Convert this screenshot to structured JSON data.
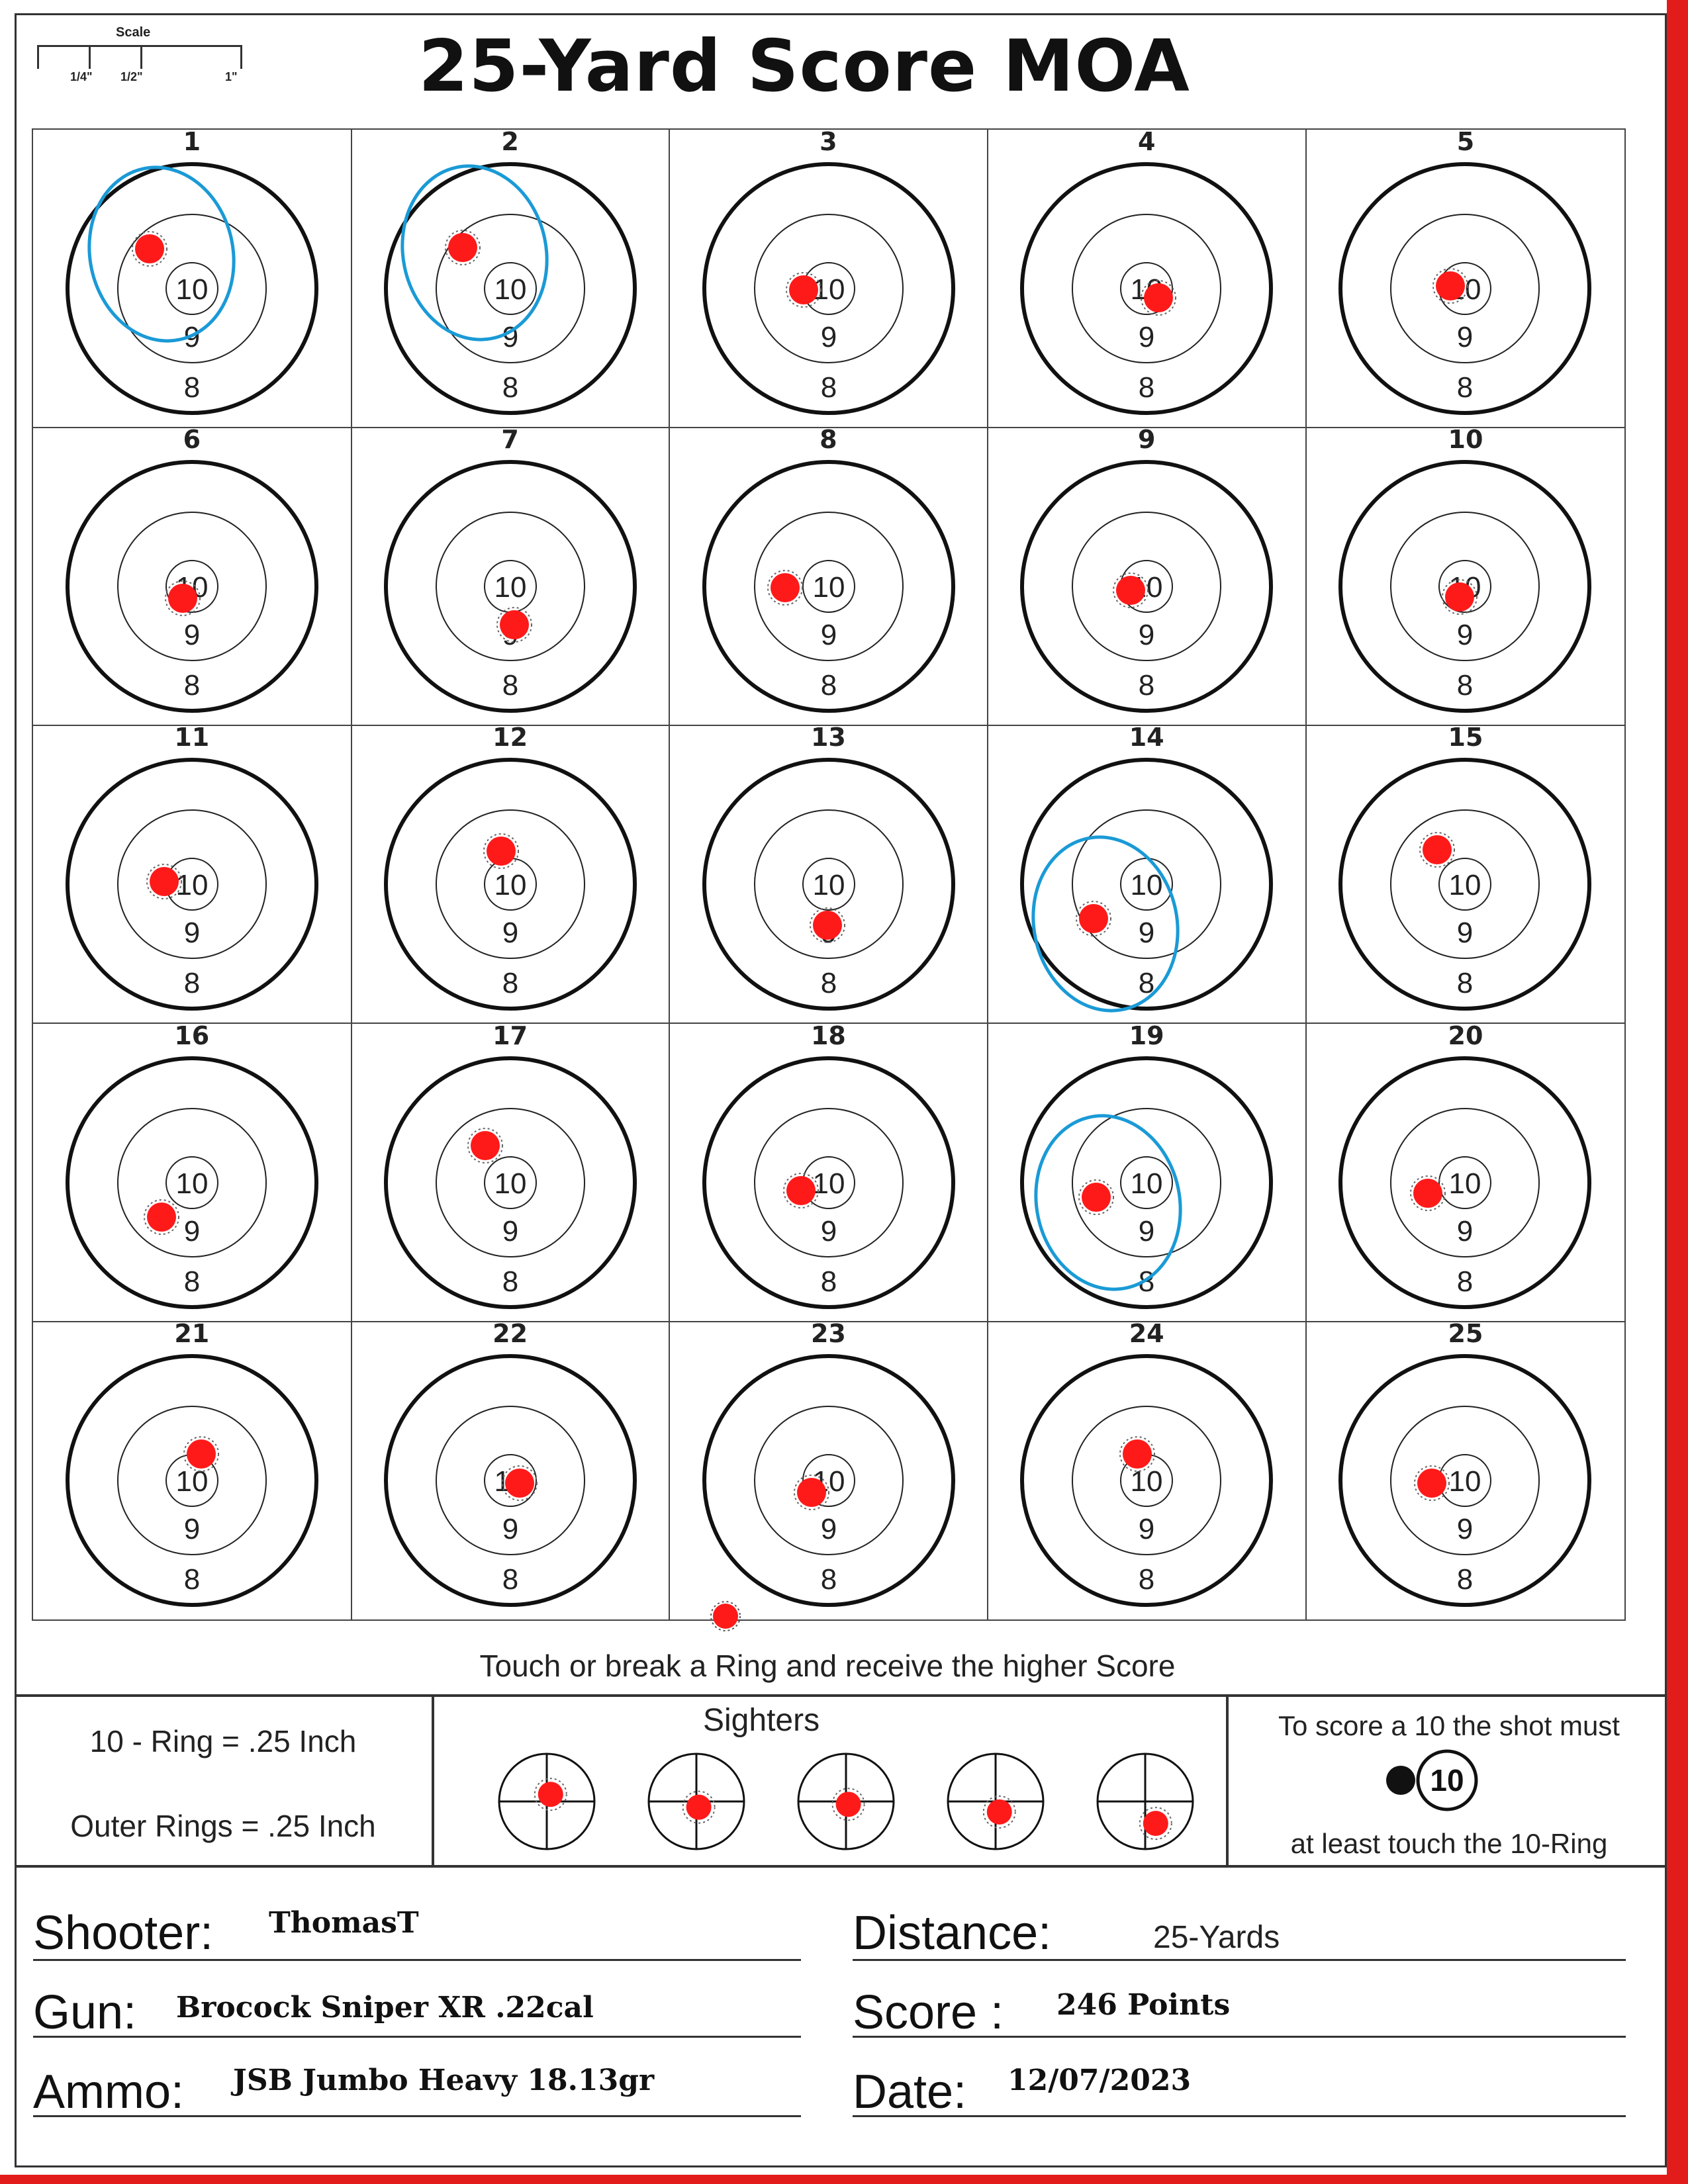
{
  "header": {
    "title": "25-Yard Score MOA",
    "scale": {
      "label": "Scale",
      "ticks": [
        "1/4\"",
        "1/2\"",
        "1\""
      ]
    }
  },
  "ring_labels": {
    "inner": "10",
    "middle": "9",
    "outer": "8"
  },
  "colors": {
    "shot": "#ff1a1a",
    "circle_mark": "#1a9ad6",
    "page_edge": "#e21b1b"
  },
  "targets": [
    {
      "number": "1",
      "shot_offset": [
        -0.32,
        -0.3
      ],
      "circled": true
    },
    {
      "number": "2",
      "shot_offset": [
        -0.36,
        -0.31
      ],
      "circled": true
    },
    {
      "number": "3",
      "shot_offset": [
        -0.19,
        0.01
      ],
      "circled": false
    },
    {
      "number": "4",
      "shot_offset": [
        0.09,
        0.07
      ],
      "circled": false
    },
    {
      "number": "5",
      "shot_offset": [
        -0.11,
        -0.02
      ],
      "circled": false
    },
    {
      "number": "6",
      "shot_offset": [
        -0.07,
        0.09
      ],
      "circled": false
    },
    {
      "number": "7",
      "shot_offset": [
        0.03,
        0.29
      ],
      "circled": false
    },
    {
      "number": "8",
      "shot_offset": [
        -0.33,
        0.01
      ],
      "circled": false
    },
    {
      "number": "9",
      "shot_offset": [
        -0.12,
        0.03
      ],
      "circled": false
    },
    {
      "number": "10",
      "shot_offset": [
        -0.04,
        0.08
      ],
      "circled": false
    },
    {
      "number": "11",
      "shot_offset": [
        -0.21,
        -0.02
      ],
      "circled": false
    },
    {
      "number": "12",
      "shot_offset": [
        -0.07,
        -0.25
      ],
      "circled": false
    },
    {
      "number": "13",
      "shot_offset": [
        -0.01,
        0.31
      ],
      "circled": false
    },
    {
      "number": "14",
      "shot_offset": [
        -0.4,
        0.26
      ],
      "circled": true
    },
    {
      "number": "15",
      "shot_offset": [
        -0.21,
        -0.26
      ],
      "circled": false
    },
    {
      "number": "16",
      "shot_offset": [
        -0.23,
        0.26
      ],
      "circled": false
    },
    {
      "number": "17",
      "shot_offset": [
        -0.19,
        -0.28
      ],
      "circled": false
    },
    {
      "number": "18",
      "shot_offset": [
        -0.21,
        0.06
      ],
      "circled": false
    },
    {
      "number": "19",
      "shot_offset": [
        -0.38,
        0.11
      ],
      "circled": true
    },
    {
      "number": "20",
      "shot_offset": [
        -0.28,
        0.08
      ],
      "circled": false
    },
    {
      "number": "21",
      "shot_offset": [
        0.07,
        -0.2
      ],
      "circled": false
    },
    {
      "number": "22",
      "shot_offset": [
        0.07,
        0.02
      ],
      "circled": false
    },
    {
      "number": "23",
      "shot_offset": [
        -0.13,
        0.09
      ],
      "circled": false
    },
    {
      "number": "24",
      "shot_offset": [
        -0.07,
        -0.2
      ],
      "circled": false
    },
    {
      "number": "25",
      "shot_offset": [
        -0.25,
        0.02
      ],
      "circled": false
    }
  ],
  "footnote": "Touch or break a Ring and receive the higher Score",
  "legend": {
    "ten_ring": "10 - Ring = .25 Inch",
    "outer_rings": "Outer Rings = .25 Inch"
  },
  "sighters": {
    "title": "Sighters",
    "shots": [
      [
        0.08,
        -0.15
      ],
      [
        0.05,
        0.12
      ],
      [
        0.05,
        0.06
      ],
      [
        0.08,
        0.22
      ],
      [
        0.22,
        0.46
      ]
    ]
  },
  "rule": {
    "line1": "To score a 10 the shot must",
    "ten": "10",
    "line2": "at least touch the 10-Ring"
  },
  "info": {
    "shooter_label": "Shooter:",
    "shooter": "ThomasT",
    "gun_label": "Gun:",
    "gun": "Brocock Sniper XR .22cal",
    "ammo_label": "Ammo:",
    "ammo": "JSB Jumbo Heavy 18.13gr",
    "distance_label": "Distance:",
    "distance": "25-Yards",
    "score_label": "Score :",
    "score": "246 Points",
    "date_label": "Date:",
    "date": "12/07/2023"
  }
}
